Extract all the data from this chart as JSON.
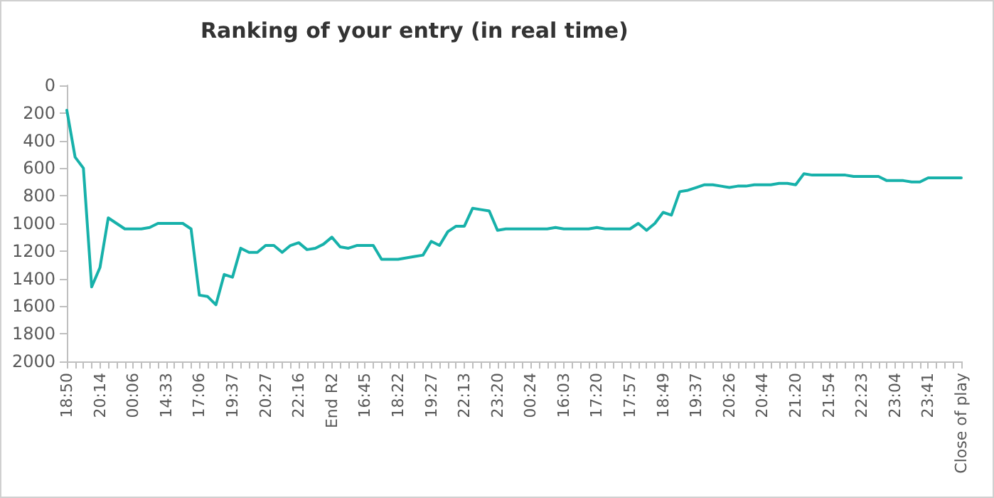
{
  "chart_data": {
    "type": "line",
    "title": "Ranking of your entry (in real time)",
    "categories": [
      "18:50",
      null,
      null,
      null,
      "20:14",
      null,
      null,
      null,
      "00:06",
      null,
      null,
      null,
      "14:33",
      null,
      null,
      null,
      "17:06",
      null,
      null,
      null,
      "19:37",
      null,
      null,
      null,
      "20:27",
      null,
      null,
      null,
      "22:16",
      null,
      null,
      null,
      "End R2",
      null,
      null,
      null,
      "16:45",
      null,
      null,
      null,
      "18:22",
      null,
      null,
      null,
      "19:27",
      null,
      null,
      null,
      "22:13",
      null,
      null,
      null,
      "23:20",
      null,
      null,
      null,
      "00:24",
      null,
      null,
      null,
      "16:03",
      null,
      null,
      null,
      "17:20",
      null,
      null,
      null,
      "17:57",
      null,
      null,
      null,
      "18:49",
      null,
      null,
      null,
      "19:37",
      null,
      null,
      null,
      "20:26",
      null,
      null,
      null,
      "20:44",
      null,
      null,
      null,
      "21:20",
      null,
      null,
      null,
      "21:54",
      null,
      null,
      null,
      "22:23",
      null,
      null,
      null,
      "23:04",
      null,
      null,
      null,
      "23:41",
      null,
      null,
      null,
      "Close of play"
    ],
    "series": [
      {
        "color": "#17b1aa",
        "values": [
          180,
          520,
          600,
          1460,
          1320,
          960,
          1000,
          1040,
          1040,
          1040,
          1030,
          1000,
          1000,
          1000,
          1000,
          1040,
          1520,
          1530,
          1590,
          1370,
          1390,
          1180,
          1210,
          1210,
          1160,
          1160,
          1210,
          1160,
          1140,
          1190,
          1180,
          1150,
          1100,
          1170,
          1180,
          1160,
          1160,
          1160,
          1260,
          1260,
          1260,
          1250,
          1240,
          1230,
          1130,
          1160,
          1060,
          1020,
          1020,
          890,
          900,
          910,
          1050,
          1040,
          1040,
          1040,
          1040,
          1040,
          1040,
          1030,
          1040,
          1040,
          1040,
          1040,
          1030,
          1040,
          1040,
          1040,
          1040,
          1000,
          1050,
          1000,
          920,
          940,
          770,
          760,
          740,
          720,
          720,
          730,
          740,
          730,
          730,
          720,
          720,
          720,
          710,
          710,
          720,
          640,
          650,
          650,
          650,
          650,
          650,
          660,
          660,
          660,
          660,
          690,
          690,
          690,
          700,
          700,
          670,
          670,
          670,
          670,
          670
        ]
      }
    ],
    "ylim": [
      2000,
      0
    ],
    "yticks": [
      0,
      200,
      400,
      600,
      800,
      1000,
      1200,
      1400,
      1600,
      1800,
      2000
    ],
    "grid": false,
    "marker": "none",
    "line_style": "solid"
  }
}
